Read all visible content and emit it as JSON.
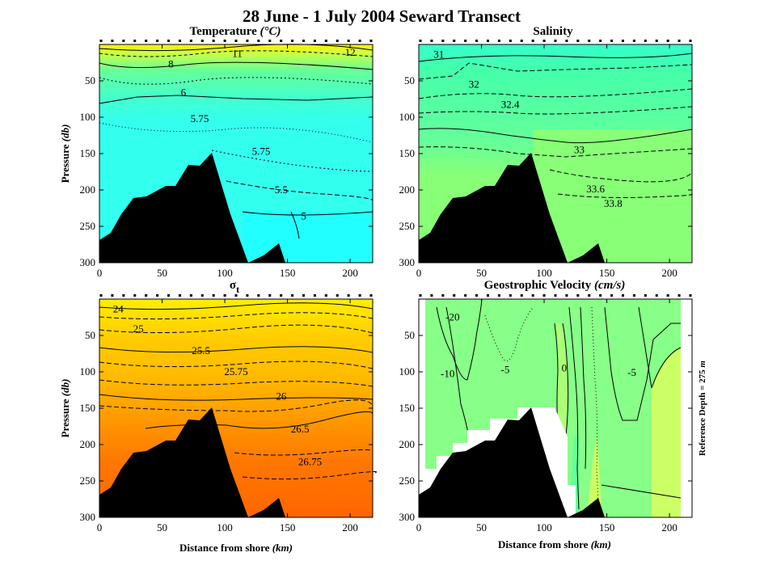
{
  "title": "28 June - 1 July 2004 Seward Transect",
  "side_note": "Reference Depth = 275",
  "side_note_unit": "m",
  "colors": {
    "bathymetry": "#000000",
    "temp_main": "#33ffee",
    "temp_deep": "#22ffff",
    "temp_mid": "#66ff99",
    "temp_warm": "#ccff44",
    "temp_top": "#ffee00",
    "sal_main": "#66ff99",
    "sal_deep": "#88ff77",
    "sal_top": "#33ffcc",
    "sig_top": "#ffee00",
    "sig_mid": "#ffbb00",
    "sig_deep": "#ff8800",
    "sig_bottom": "#ff6600",
    "vel_main": "#88ff88",
    "vel_pos": "#ccff66",
    "vel_neg": "#66ff99"
  },
  "chart_data": [
    {
      "type": "heatmap",
      "id": "temperature",
      "title": "Temperature",
      "title_unit": "(°C)",
      "xlabel": "",
      "ylabel": "Pressure",
      "ylabel_unit": "(db)",
      "xlim": [
        0,
        218
      ],
      "ylim": [
        300,
        0
      ],
      "xticks": [
        0,
        50,
        100,
        150,
        200
      ],
      "yticks": [
        50,
        100,
        150,
        200,
        250,
        300
      ],
      "contour_labels": [
        {
          "text": "11",
          "x": 110,
          "y": 13
        },
        {
          "text": "12",
          "x": 200,
          "y": 11
        },
        {
          "text": "8",
          "x": 57,
          "y": 27
        },
        {
          "text": "6",
          "x": 67,
          "y": 66
        },
        {
          "text": "5.75",
          "x": 80,
          "y": 102
        },
        {
          "text": "5.75",
          "x": 129,
          "y": 147
        },
        {
          "text": "5.5",
          "x": 145,
          "y": 200
        },
        {
          "text": "5",
          "x": 163,
          "y": 236
        }
      ]
    },
    {
      "type": "heatmap",
      "id": "salinity",
      "title": "Salinity",
      "xlabel": "",
      "ylabel": "",
      "xlim": [
        0,
        218
      ],
      "ylim": [
        300,
        0
      ],
      "xticks": [
        0,
        50,
        100,
        150,
        200
      ],
      "yticks": [
        50,
        100,
        150,
        200,
        250,
        300
      ],
      "contour_labels": [
        {
          "text": "31",
          "x": 16,
          "y": 14
        },
        {
          "text": "32",
          "x": 44,
          "y": 55
        },
        {
          "text": "32.4",
          "x": 73,
          "y": 83
        },
        {
          "text": "33",
          "x": 128,
          "y": 145
        },
        {
          "text": "33.6",
          "x": 141,
          "y": 199
        },
        {
          "text": "33.8",
          "x": 155,
          "y": 219
        }
      ]
    },
    {
      "type": "heatmap",
      "id": "sigma_t",
      "title": "σ",
      "title_sub": "t",
      "xlabel": "Distance from shore",
      "xlabel_unit": "(km)",
      "ylabel": "Pressure",
      "ylabel_unit": "(db)",
      "xlim": [
        0,
        218
      ],
      "ylim": [
        300,
        0
      ],
      "xticks": [
        0,
        50,
        100,
        150,
        200
      ],
      "yticks": [
        50,
        100,
        150,
        200,
        250,
        300
      ],
      "contour_labels": [
        {
          "text": "24",
          "x": 15,
          "y": 14
        },
        {
          "text": "25",
          "x": 31,
          "y": 41
        },
        {
          "text": "25.5",
          "x": 81,
          "y": 71
        },
        {
          "text": "25.75",
          "x": 109,
          "y": 100
        },
        {
          "text": "26",
          "x": 145,
          "y": 134
        },
        {
          "text": "26.5",
          "x": 160,
          "y": 179
        },
        {
          "text": "26.75",
          "x": 168,
          "y": 224
        }
      ]
    },
    {
      "type": "heatmap",
      "id": "geostrophic_velocity",
      "title": "Geostrophic Velocity",
      "title_unit": "(cm/s)",
      "xlabel": "Distance from shore",
      "xlabel_unit": "(km)",
      "ylabel": "",
      "xlim": [
        0,
        218
      ],
      "ylim": [
        300,
        0
      ],
      "xticks": [
        0,
        50,
        100,
        150,
        200
      ],
      "yticks": [
        50,
        100,
        150,
        200,
        250,
        300
      ],
      "contour_labels": [
        {
          "text": "-20",
          "x": 27,
          "y": 25
        },
        {
          "text": "-10",
          "x": 23,
          "y": 103
        },
        {
          "text": "-5",
          "x": 69,
          "y": 97
        },
        {
          "text": "0",
          "x": 116,
          "y": 95
        },
        {
          "text": "-5",
          "x": 170,
          "y": 101
        }
      ]
    }
  ]
}
